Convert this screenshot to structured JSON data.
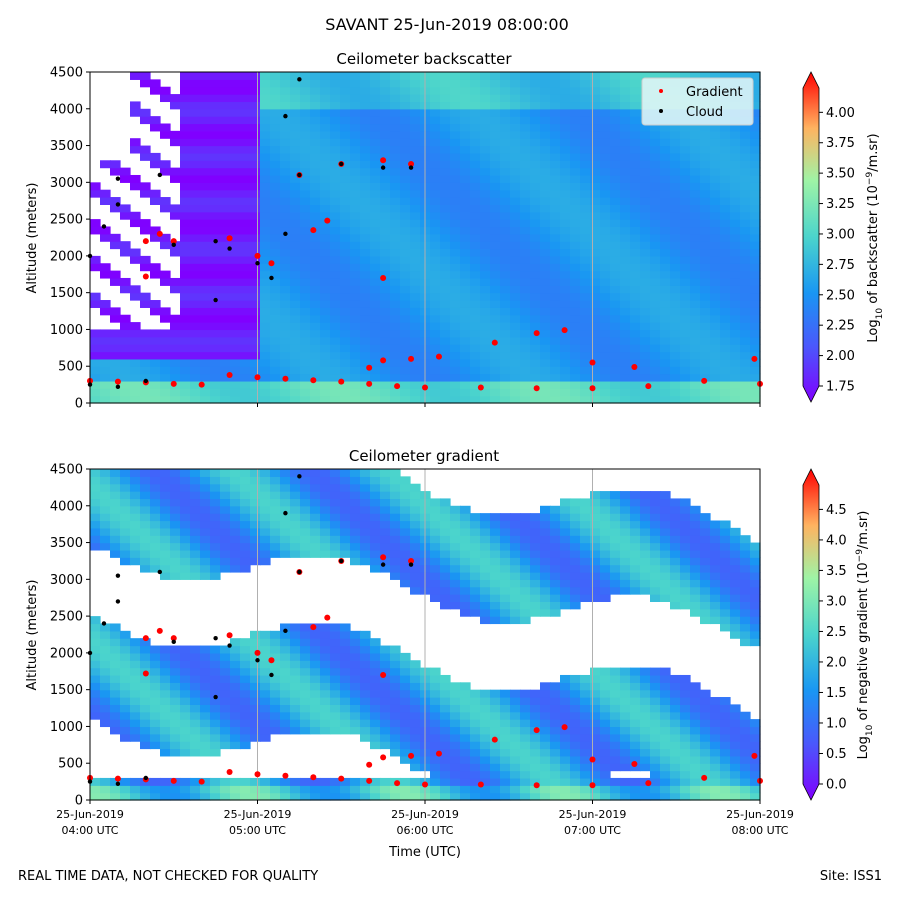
{
  "suptitle": "SAVANT 25-Jun-2019 08:00:00",
  "footer": {
    "left": "REAL TIME DATA, NOT CHECKED FOR QUALITY",
    "right": "Site: ISS1"
  },
  "colors": {
    "cloud": "#000000",
    "gradient": "#ff0000",
    "grid": "#b0b0b0"
  },
  "colormap": "rainbow",
  "chart_data": [
    {
      "type": "heatmap",
      "title": "Ceilometer backscatter",
      "ylabel": "Altitude (meters)",
      "xlabel": "",
      "xlim": [
        "25-Jun-2019 04:00",
        "25-Jun-2019 08:00"
      ],
      "ylim": [
        0,
        4500
      ],
      "yticks": [
        "0",
        "500",
        "1000",
        "1500",
        "2000",
        "2500",
        "3000",
        "3500",
        "4000",
        "4500"
      ],
      "xticks": [],
      "grid": "vertical",
      "legend": {
        "placement": "top-right",
        "entries": [
          "Gradient",
          "Cloud"
        ]
      },
      "colorbar": {
        "label": "Log10 of backscatter (10^-9/m.sr)",
        "range": [
          1.75,
          4.2
        ],
        "ticks": [
          "1.75",
          "2.00",
          "2.25",
          "2.50",
          "2.75",
          "3.00",
          "3.25",
          "3.50",
          "3.75",
          "4.00"
        ]
      },
      "series": [
        {
          "name": "Gradient",
          "points": [
            [
              "04:00",
              300
            ],
            [
              "04:10",
              290
            ],
            [
              "04:20",
              280
            ],
            [
              "04:30",
              260
            ],
            [
              "04:40",
              250
            ],
            [
              "04:50",
              380
            ],
            [
              "05:00",
              350
            ],
            [
              "05:10",
              330
            ],
            [
              "05:20",
              310
            ],
            [
              "05:30",
              290
            ],
            [
              "05:40",
              260
            ],
            [
              "05:50",
              230
            ],
            [
              "06:00",
              210
            ],
            [
              "06:20",
              210
            ],
            [
              "06:40",
              200
            ],
            [
              "07:00",
              200
            ],
            [
              "07:20",
              230
            ],
            [
              "07:40",
              300
            ],
            [
              "08:00",
              260
            ],
            [
              "04:20",
              1720
            ],
            [
              "05:25",
              2480
            ],
            [
              "05:20",
              2350
            ],
            [
              "04:20",
              2200
            ],
            [
              "04:25",
              2300
            ],
            [
              "04:30",
              2200
            ],
            [
              "04:50",
              2240
            ],
            [
              "05:00",
              2000
            ],
            [
              "05:05",
              1900
            ],
            [
              "05:15",
              3100
            ],
            [
              "05:30",
              3250
            ],
            [
              "05:45",
              3300
            ],
            [
              "05:55",
              3250
            ],
            [
              "05:45",
              1700
            ],
            [
              "05:40",
              480
            ],
            [
              "05:45",
              580
            ],
            [
              "05:55",
              600
            ],
            [
              "06:05",
              630
            ],
            [
              "06:25",
              820
            ],
            [
              "06:40",
              950
            ],
            [
              "06:50",
              990
            ],
            [
              "07:00",
              550
            ],
            [
              "07:15",
              490
            ],
            [
              "07:58",
              600
            ]
          ]
        },
        {
          "name": "Cloud",
          "points": [
            [
              "04:00",
              2000
            ],
            [
              "04:05",
              2400
            ],
            [
              "04:10",
              2700
            ],
            [
              "04:10",
              3050
            ],
            [
              "04:25",
              3100
            ],
            [
              "04:30",
              2150
            ],
            [
              "04:45",
              2200
            ],
            [
              "04:50",
              2100
            ],
            [
              "05:00",
              1900
            ],
            [
              "05:05",
              1700
            ],
            [
              "05:10",
              2300
            ],
            [
              "05:15",
              3100
            ],
            [
              "05:30",
              3250
            ],
            [
              "05:45",
              3200
            ],
            [
              "05:55",
              3200
            ],
            [
              "04:45",
              1400
            ],
            [
              "05:10",
              3900
            ],
            [
              "05:15",
              4400
            ],
            [
              "04:00",
              250
            ],
            [
              "04:10",
              220
            ],
            [
              "04:20",
              300
            ]
          ]
        }
      ]
    },
    {
      "type": "heatmap",
      "title": "Ceilometer gradient",
      "ylabel": "Altitude (meters)",
      "xlabel": "Time (UTC)",
      "xlim": [
        "25-Jun-2019 04:00",
        "25-Jun-2019 08:00"
      ],
      "ylim": [
        0,
        4500
      ],
      "yticks": [
        "0",
        "500",
        "1000",
        "1500",
        "2000",
        "2500",
        "3000",
        "3500",
        "4000",
        "4500"
      ],
      "xticks": [
        {
          "date": "25-Jun-2019",
          "time": "04:00 UTC"
        },
        {
          "date": "25-Jun-2019",
          "time": "05:00 UTC"
        },
        {
          "date": "25-Jun-2019",
          "time": "06:00 UTC"
        },
        {
          "date": "25-Jun-2019",
          "time": "07:00 UTC"
        },
        {
          "date": "25-Jun-2019",
          "time": "08:00 UTC"
        }
      ],
      "grid": "vertical",
      "colorbar": {
        "label": "Log10 of negative gradient (10^-9/m.sr)",
        "range": [
          0.0,
          4.9
        ],
        "ticks": [
          "0.0",
          "0.5",
          "1.0",
          "1.5",
          "2.0",
          "2.5",
          "3.0",
          "3.5",
          "4.0",
          "4.5"
        ]
      }
    }
  ]
}
